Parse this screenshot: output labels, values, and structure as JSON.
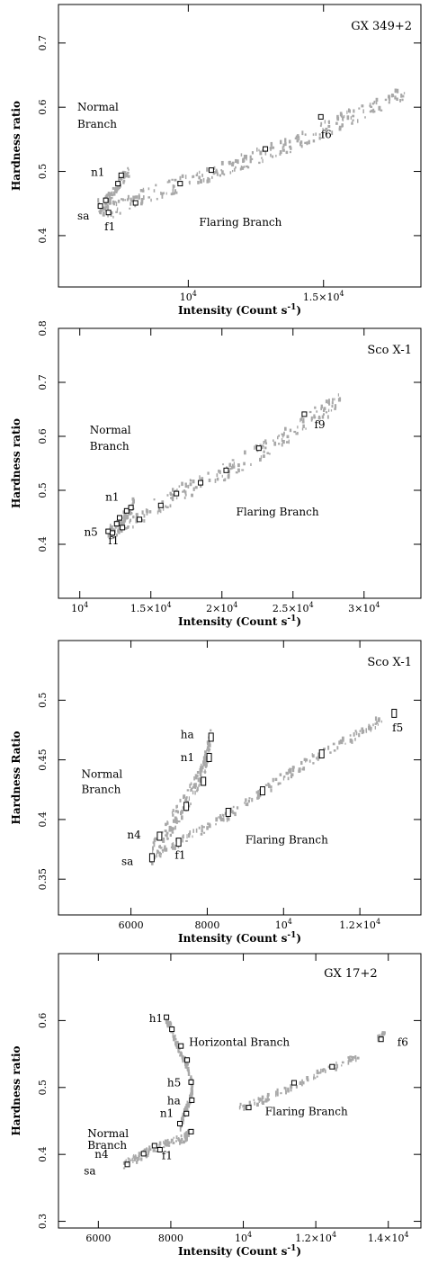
{
  "chart_data": [
    {
      "type": "scatter",
      "title": "GX 349+2",
      "xlabel": "Intensity (Count s",
      "xlabel_sup": "-1",
      "xlabel_end": ")",
      "ylabel": "Hardness ratio",
      "xlim": [
        5200,
        18600
      ],
      "ylim": [
        0.32,
        0.76
      ],
      "xticks": [
        {
          "v": 10000,
          "label": "10",
          "sup": "4"
        },
        {
          "v": 15000,
          "label": "1.5×10",
          "sup": "4"
        }
      ],
      "yticks": [
        {
          "v": 0.4,
          "label": "0.4"
        },
        {
          "v": 0.5,
          "label": "0.5"
        },
        {
          "v": 0.6,
          "label": "0.6"
        },
        {
          "v": 0.7,
          "label": "0.7"
        }
      ],
      "segments": [
        {
          "x": [
            6650,
            7200,
            8000,
            9000,
            10000,
            11000,
            12000,
            13000,
            14000,
            15000,
            16000,
            17000,
            18000
          ],
          "y": [
            0.445,
            0.44,
            0.455,
            0.47,
            0.485,
            0.5,
            0.515,
            0.53,
            0.545,
            0.565,
            0.585,
            0.605,
            0.62
          ],
          "spread": 0.012
        },
        {
          "x": [
            6700,
            7000,
            7300,
            7500,
            7800
          ],
          "y": [
            0.44,
            0.455,
            0.47,
            0.485,
            0.5
          ],
          "spread": 0.008
        }
      ],
      "markers": [
        {
          "x": 6750,
          "y": 0.446
        },
        {
          "x": 6950,
          "y": 0.455
        },
        {
          "x": 7050,
          "y": 0.436
        },
        {
          "x": 7400,
          "y": 0.481
        },
        {
          "x": 7520,
          "y": 0.494
        },
        {
          "x": 8050,
          "y": 0.451
        },
        {
          "x": 9700,
          "y": 0.481
        },
        {
          "x": 10850,
          "y": 0.502
        },
        {
          "x": 12850,
          "y": 0.535
        },
        {
          "x": 14900,
          "y": 0.585
        }
      ],
      "annotations": [
        {
          "text": "Normal",
          "x": 5900,
          "y": 0.595
        },
        {
          "text": "Branch",
          "x": 5900,
          "y": 0.568
        },
        {
          "text": "n1",
          "x": 6400,
          "y": 0.493
        },
        {
          "text": "sa",
          "x": 5900,
          "y": 0.425
        },
        {
          "text": "f1",
          "x": 6900,
          "y": 0.408
        },
        {
          "text": "f6",
          "x": 14900,
          "y": 0.552
        },
        {
          "text": "Flaring Branch",
          "x": 10400,
          "y": 0.415
        }
      ]
    },
    {
      "type": "scatter",
      "title": "Sco X-1",
      "xlabel": "Intensity (Count s",
      "xlabel_sup": "-1",
      "xlabel_end": ")",
      "ylabel": "Hardness ratio",
      "xlim": [
        8500,
        34000
      ],
      "ylim": [
        0.3,
        0.8
      ],
      "xticks": [
        {
          "v": 10000,
          "label": "10",
          "sup": "4"
        },
        {
          "v": 15000,
          "label": "1.5×10",
          "sup": "4"
        },
        {
          "v": 20000,
          "label": "2×10",
          "sup": "4"
        },
        {
          "v": 25000,
          "label": "2.5×10",
          "sup": "4"
        },
        {
          "v": 30000,
          "label": "3×10",
          "sup": "4"
        }
      ],
      "yticks": [
        {
          "v": 0.4,
          "label": "0.4"
        },
        {
          "v": 0.5,
          "label": "0.5"
        },
        {
          "v": 0.6,
          "label": "0.6"
        },
        {
          "v": 0.7,
          "label": "0.7"
        },
        {
          "v": 0.8,
          "label": "0.8"
        }
      ],
      "segments": [
        {
          "x": [
            12000,
            13500,
            15000,
            17000,
            19000,
            21000,
            23000,
            25000,
            27000,
            28500
          ],
          "y": [
            0.42,
            0.44,
            0.465,
            0.495,
            0.52,
            0.545,
            0.575,
            0.61,
            0.645,
            0.665
          ],
          "spread": 0.016
        },
        {
          "x": [
            12000,
            12500,
            13000,
            13500,
            13800
          ],
          "y": [
            0.42,
            0.43,
            0.445,
            0.46,
            0.475
          ],
          "spread": 0.012
        }
      ],
      "markers": [
        {
          "x": 12000,
          "y": 0.424
        },
        {
          "x": 12300,
          "y": 0.421
        },
        {
          "x": 12600,
          "y": 0.438
        },
        {
          "x": 12800,
          "y": 0.449
        },
        {
          "x": 13000,
          "y": 0.431
        },
        {
          "x": 13300,
          "y": 0.462
        },
        {
          "x": 13600,
          "y": 0.468
        },
        {
          "x": 14200,
          "y": 0.446
        },
        {
          "x": 15700,
          "y": 0.472
        },
        {
          "x": 16800,
          "y": 0.494
        },
        {
          "x": 18500,
          "y": 0.514
        },
        {
          "x": 20300,
          "y": 0.537
        },
        {
          "x": 22600,
          "y": 0.578
        },
        {
          "x": 25800,
          "y": 0.641
        }
      ],
      "annotations": [
        {
          "text": "Normal",
          "x": 10700,
          "y": 0.605
        },
        {
          "text": "Branch",
          "x": 10700,
          "y": 0.575
        },
        {
          "text": "n1",
          "x": 11800,
          "y": 0.481
        },
        {
          "text": "n5",
          "x": 10300,
          "y": 0.416
        },
        {
          "text": "f1",
          "x": 12000,
          "y": 0.4
        },
        {
          "text": "f9",
          "x": 26500,
          "y": 0.615
        },
        {
          "text": "Flaring Branch",
          "x": 21000,
          "y": 0.453
        }
      ]
    },
    {
      "type": "scatter",
      "title": "Sco X-1",
      "xlabel": "Intensity (Count s",
      "xlabel_sup": "-1",
      "xlabel_end": ")",
      "ylabel": "Hardness Ratio",
      "xlim": [
        4100,
        13600
      ],
      "ylim": [
        0.32,
        0.55
      ],
      "xticks": [
        {
          "v": 6000,
          "label": "6000"
        },
        {
          "v": 8000,
          "label": "8000"
        },
        {
          "v": 10000,
          "label": "10",
          "sup": "4"
        },
        {
          "v": 12000,
          "label": "1.2×10",
          "sup": "4"
        }
      ],
      "yticks": [
        {
          "v": 0.35,
          "label": "0.35"
        },
        {
          "v": 0.4,
          "label": "0.4"
        },
        {
          "v": 0.45,
          "label": "0.45"
        },
        {
          "v": 0.5,
          "label": "0.5"
        }
      ],
      "segments": [
        {
          "x": [
            6500,
            6800,
            7100,
            7400,
            7700,
            7900,
            8000,
            8100
          ],
          "y": [
            0.368,
            0.385,
            0.398,
            0.412,
            0.428,
            0.442,
            0.455,
            0.47
          ],
          "spread": 0.009
        },
        {
          "x": [
            6700,
            7200,
            8000,
            8600,
            9400,
            10200,
            11000,
            12000,
            12600
          ],
          "y": [
            0.37,
            0.38,
            0.393,
            0.405,
            0.422,
            0.44,
            0.455,
            0.472,
            0.485
          ],
          "spread": 0.004
        }
      ],
      "markers": [
        {
          "x": 6550,
          "y": 0.368,
          "tall": true
        },
        {
          "x": 6750,
          "y": 0.386,
          "tall": true
        },
        {
          "x": 7250,
          "y": 0.381,
          "tall": true
        },
        {
          "x": 7450,
          "y": 0.411,
          "tall": true
        },
        {
          "x": 7900,
          "y": 0.432,
          "tall": true
        },
        {
          "x": 8050,
          "y": 0.452,
          "tall": true
        },
        {
          "x": 8100,
          "y": 0.469,
          "tall": true
        },
        {
          "x": 8550,
          "y": 0.406,
          "tall": true
        },
        {
          "x": 9450,
          "y": 0.424,
          "tall": true
        },
        {
          "x": 11000,
          "y": 0.455,
          "tall": true
        },
        {
          "x": 12900,
          "y": 0.489,
          "tall": true
        }
      ],
      "annotations": [
        {
          "text": "ha",
          "x": 7300,
          "y": 0.468
        },
        {
          "text": "n1",
          "x": 7300,
          "y": 0.449
        },
        {
          "text": "Normal",
          "x": 4700,
          "y": 0.435
        },
        {
          "text": "Branch",
          "x": 4700,
          "y": 0.422
        },
        {
          "text": "n4",
          "x": 5900,
          "y": 0.384
        },
        {
          "text": "sa",
          "x": 5750,
          "y": 0.362
        },
        {
          "text": "f1",
          "x": 7150,
          "y": 0.367
        },
        {
          "text": "f5",
          "x": 12850,
          "y": 0.474
        },
        {
          "text": "Flaring Branch",
          "x": 9000,
          "y": 0.38
        }
      ]
    },
    {
      "type": "scatter",
      "title": "GX 17+2",
      "xlabel": "Intensity (Count s",
      "xlabel_sup": "-1",
      "xlabel_end": ")",
      "ylabel": "Hardness ratio",
      "xlim": [
        4900,
        14900
      ],
      "ylim": [
        0.29,
        0.7
      ],
      "xticks": [
        {
          "v": 6000,
          "label": "6000"
        },
        {
          "v": 8000,
          "label": "8000"
        },
        {
          "v": 10000,
          "label": "10",
          "sup": "4"
        },
        {
          "v": 12000,
          "label": "1.2×10",
          "sup": "4"
        },
        {
          "v": 14000,
          "label": "1.4×10",
          "sup": "4"
        }
      ],
      "yticks": [
        {
          "v": 0.3,
          "label": "0.3"
        },
        {
          "v": 0.4,
          "label": "0.4"
        },
        {
          "v": 0.5,
          "label": "0.5"
        },
        {
          "v": 0.6,
          "label": "0.6"
        }
      ],
      "segments": [
        {
          "x": [
            6700,
            7100,
            7500,
            8000,
            8400,
            8500
          ],
          "y": [
            0.385,
            0.395,
            0.408,
            0.418,
            0.425,
            0.432
          ],
          "spread": 0.006
        },
        {
          "x": [
            8250,
            8350,
            8450,
            8550,
            8600,
            8550
          ],
          "y": [
            0.44,
            0.455,
            0.47,
            0.485,
            0.5,
            0.515
          ],
          "spread": 0.006
        },
        {
          "x": [
            7850,
            8000,
            8200,
            8400,
            8500
          ],
          "y": [
            0.605,
            0.59,
            0.56,
            0.538,
            0.525
          ],
          "spread": 0.006
        },
        {
          "x": [
            9900,
            10500,
            11500,
            12500,
            13200
          ],
          "y": [
            0.47,
            0.48,
            0.505,
            0.53,
            0.548
          ],
          "spread": 0.005
        },
        {
          "x": [
            13700,
            13900
          ],
          "y": [
            0.573,
            0.58
          ],
          "spread": 0.004
        }
      ],
      "markers": [
        {
          "x": 6800,
          "y": 0.385
        },
        {
          "x": 7250,
          "y": 0.401
        },
        {
          "x": 7550,
          "y": 0.413
        },
        {
          "x": 7700,
          "y": 0.407
        },
        {
          "x": 8250,
          "y": 0.446
        },
        {
          "x": 8430,
          "y": 0.461
        },
        {
          "x": 8560,
          "y": 0.434
        },
        {
          "x": 8580,
          "y": 0.481
        },
        {
          "x": 8560,
          "y": 0.508
        },
        {
          "x": 8450,
          "y": 0.541
        },
        {
          "x": 8280,
          "y": 0.562
        },
        {
          "x": 8030,
          "y": 0.587
        },
        {
          "x": 7880,
          "y": 0.605
        },
        {
          "x": 10150,
          "y": 0.47
        },
        {
          "x": 11400,
          "y": 0.507
        },
        {
          "x": 12450,
          "y": 0.531
        },
        {
          "x": 13800,
          "y": 0.572
        }
      ],
      "annotations": [
        {
          "text": "GX 17+2",
          "x": 13700,
          "y": 0.665
        },
        {
          "text": "h1",
          "x": 7400,
          "y": 0.598
        },
        {
          "text": "Horizontal Branch",
          "x": 8500,
          "y": 0.562
        },
        {
          "text": "h5",
          "x": 7900,
          "y": 0.502
        },
        {
          "text": "ha",
          "x": 7900,
          "y": 0.475
        },
        {
          "text": "n1",
          "x": 7700,
          "y": 0.456
        },
        {
          "text": "Normal",
          "x": 5700,
          "y": 0.426
        },
        {
          "text": "Branch",
          "x": 5700,
          "y": 0.408
        },
        {
          "text": "n4",
          "x": 5900,
          "y": 0.395
        },
        {
          "text": "sa",
          "x": 5600,
          "y": 0.37
        },
        {
          "text": "f1",
          "x": 7750,
          "y": 0.393
        },
        {
          "text": "f6",
          "x": 14250,
          "y": 0.562
        },
        {
          "text": "Flaring Branch",
          "x": 10600,
          "y": 0.459
        }
      ]
    }
  ]
}
